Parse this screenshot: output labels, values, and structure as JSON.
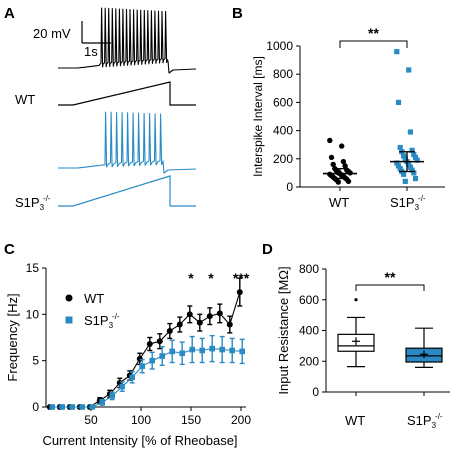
{
  "colors": {
    "wt": "#000000",
    "ko": "#2a8bc4",
    "ko_fill": "#2a8bc4"
  },
  "panels": {
    "a": "A",
    "b": "B",
    "c": "C",
    "d": "D"
  },
  "chart_data": [
    {
      "panel": "A",
      "type": "line",
      "title": "",
      "scalebar": {
        "y": "20 mV",
        "x": "1s"
      },
      "labels": {
        "wt": "WT",
        "ko_base": "S1P",
        "ko_sub": "3",
        "ko_sup": "-/-"
      },
      "traces": [
        {
          "name": "WT",
          "kind": "membrane-potential",
          "spikes": 19
        },
        {
          "name": "WT",
          "kind": "current-ramp"
        },
        {
          "name": "S1P3-/-",
          "kind": "membrane-potential",
          "spikes": 11
        },
        {
          "name": "S1P3-/-",
          "kind": "current-ramp"
        }
      ]
    },
    {
      "panel": "B",
      "type": "scatter",
      "title": "",
      "ylabel": "Interspike Interval [ms]",
      "xlabel": "",
      "ylim": [
        0,
        1000
      ],
      "yticks": [
        0,
        200,
        400,
        600,
        800,
        1000
      ],
      "categories": [
        "WT",
        "S1P3-/-"
      ],
      "category_labels": [
        {
          "base": "WT",
          "sub": "",
          "sup": ""
        },
        {
          "base": "S1P",
          "sub": "3",
          "sup": "-/-"
        }
      ],
      "significance": "**",
      "series": [
        {
          "category": "WT",
          "marker": "circle",
          "values": [
            330,
            290,
            210,
            180,
            160,
            150,
            130,
            120,
            115,
            110,
            100,
            100,
            95,
            90,
            85,
            80,
            75,
            70,
            65,
            60,
            55,
            50,
            40,
            35
          ],
          "median": 95,
          "iqr": [
            60,
            130
          ]
        },
        {
          "category": "S1P3-/-",
          "marker": "square",
          "values": [
            960,
            830,
            600,
            390,
            280,
            260,
            250,
            230,
            220,
            210,
            200,
            190,
            180,
            170,
            160,
            150,
            140,
            130,
            120,
            110,
            100,
            90,
            60,
            40
          ],
          "median": 180,
          "iqr": [
            110,
            250
          ]
        }
      ]
    },
    {
      "panel": "C",
      "type": "line",
      "title": "",
      "xlabel": "Current Intensity [% of Rheobase]",
      "ylabel": "Frequency [Hz]",
      "xlim": [
        5,
        205
      ],
      "ylim": [
        0,
        15
      ],
      "xticks": [
        50,
        100,
        150,
        200
      ],
      "yticks": [
        0,
        5,
        10,
        15
      ],
      "x": [
        10,
        20,
        30,
        40,
        50,
        60,
        70,
        80,
        90,
        100,
        110,
        120,
        130,
        140,
        150,
        160,
        170,
        180,
        190,
        200
      ],
      "legend": "top-left",
      "series": [
        {
          "name": "WT",
          "marker": "circle",
          "values": [
            0,
            0,
            0,
            0,
            0,
            0.7,
            1.4,
            2.6,
            3.4,
            5.2,
            6.8,
            7.1,
            8.2,
            8.9,
            10.0,
            9.1,
            9.8,
            10.1,
            8.9,
            12.4
          ],
          "errors": [
            0,
            0,
            0,
            0,
            0,
            0.3,
            0.4,
            0.5,
            0.5,
            0.6,
            0.7,
            0.8,
            0.8,
            0.8,
            0.9,
            0.9,
            0.9,
            1.0,
            0.9,
            1.5
          ]
        },
        {
          "name": "S1P3-/-",
          "label": {
            "base": "S1P",
            "sub": "3",
            "sup": "-/-"
          },
          "marker": "square",
          "values": [
            0,
            0,
            0,
            0,
            0,
            0.5,
            1.2,
            2.2,
            3.2,
            4.4,
            5.0,
            5.5,
            6.0,
            5.8,
            6.2,
            6.1,
            6.3,
            6.2,
            6.1,
            6.0
          ],
          "errors": [
            0,
            0,
            0,
            0,
            0,
            0.3,
            0.4,
            0.5,
            0.6,
            0.7,
            0.9,
            1.0,
            1.2,
            1.2,
            1.4,
            1.3,
            1.4,
            1.4,
            1.3,
            1.3
          ]
        }
      ],
      "annotations": [
        {
          "x": 150,
          "text": "*"
        },
        {
          "x": 170,
          "text": "*"
        },
        {
          "x": 200,
          "text": "***"
        }
      ]
    },
    {
      "panel": "D",
      "type": "box",
      "title": "",
      "ylabel": "Input Resistance [MΩ]",
      "xlabel": "",
      "ylim": [
        0,
        800
      ],
      "yticks": [
        0,
        200,
        400,
        600,
        800
      ],
      "categories": [
        "WT",
        "S1P3-/-"
      ],
      "category_labels": [
        {
          "base": "WT",
          "sub": "",
          "sup": ""
        },
        {
          "base": "S1P",
          "sub": "3",
          "sup": "-/-"
        }
      ],
      "significance": "**",
      "boxes": [
        {
          "category": "WT",
          "whisker_low": 165,
          "q1": 265,
          "median": 300,
          "q3": 375,
          "whisker_high": 485,
          "mean": 330,
          "outliers": [
            600
          ],
          "fill": "#ffffff"
        },
        {
          "category": "S1P3-/-",
          "whisker_low": 160,
          "q1": 195,
          "median": 235,
          "q3": 285,
          "whisker_high": 415,
          "mean": 245,
          "outliers": [],
          "fill": "#2a8bc4"
        }
      ]
    }
  ]
}
